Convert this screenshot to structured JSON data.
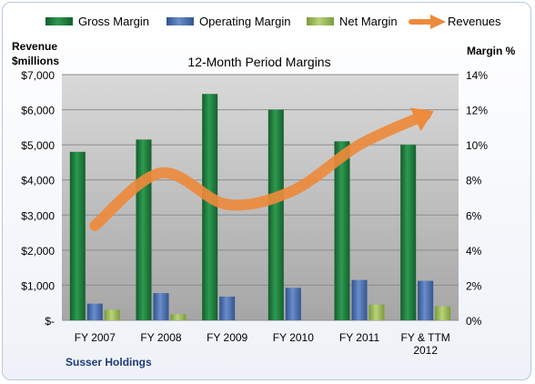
{
  "chart_data": {
    "type": "bar",
    "title": "12-Month Period Margins",
    "left_axis_title_line1": "Revenue",
    "left_axis_title_line2": "$millions",
    "right_axis_title": "Margin %",
    "company": "Susser Holdings",
    "categories": [
      [
        "FY 2007"
      ],
      [
        "FY 2008"
      ],
      [
        "FY 2009"
      ],
      [
        "FY 2010"
      ],
      [
        "FY 2011"
      ],
      [
        "FY & TTM",
        "2012"
      ]
    ],
    "left_ticks": [
      "$-",
      "$1,000",
      "$2,000",
      "$3,000",
      "$4,000",
      "$5,000",
      "$6,000",
      "$7,000"
    ],
    "right_ticks": [
      "0%",
      "2%",
      "4%",
      "6%",
      "8%",
      "10%",
      "12%",
      "14%"
    ],
    "ylim_left": [
      0,
      7000
    ],
    "ylim_right": [
      0,
      14
    ],
    "grid": "horizontal",
    "legend_position": "top",
    "series": [
      {
        "name": "Gross Margin",
        "axis": "right",
        "unit": "%",
        "color": "#1f7a3c",
        "values": [
          9.6,
          10.3,
          12.9,
          12.0,
          10.2,
          10.0
        ]
      },
      {
        "name": "Operating Margin",
        "axis": "right",
        "unit": "%",
        "color": "#4a6fb0",
        "values": [
          0.95,
          1.55,
          1.35,
          1.85,
          2.3,
          2.25
        ]
      },
      {
        "name": "Net Margin",
        "axis": "right",
        "unit": "%",
        "color": "#9bbb59",
        "values": [
          0.6,
          0.35,
          0.0,
          0.0,
          0.9,
          0.8
        ]
      },
      {
        "name": "Revenues",
        "axis": "left",
        "unit": "$M",
        "color": "#ed8a3c",
        "type": "line",
        "values": [
          2700,
          4200,
          3300,
          3700,
          5000,
          5850
        ]
      }
    ]
  }
}
